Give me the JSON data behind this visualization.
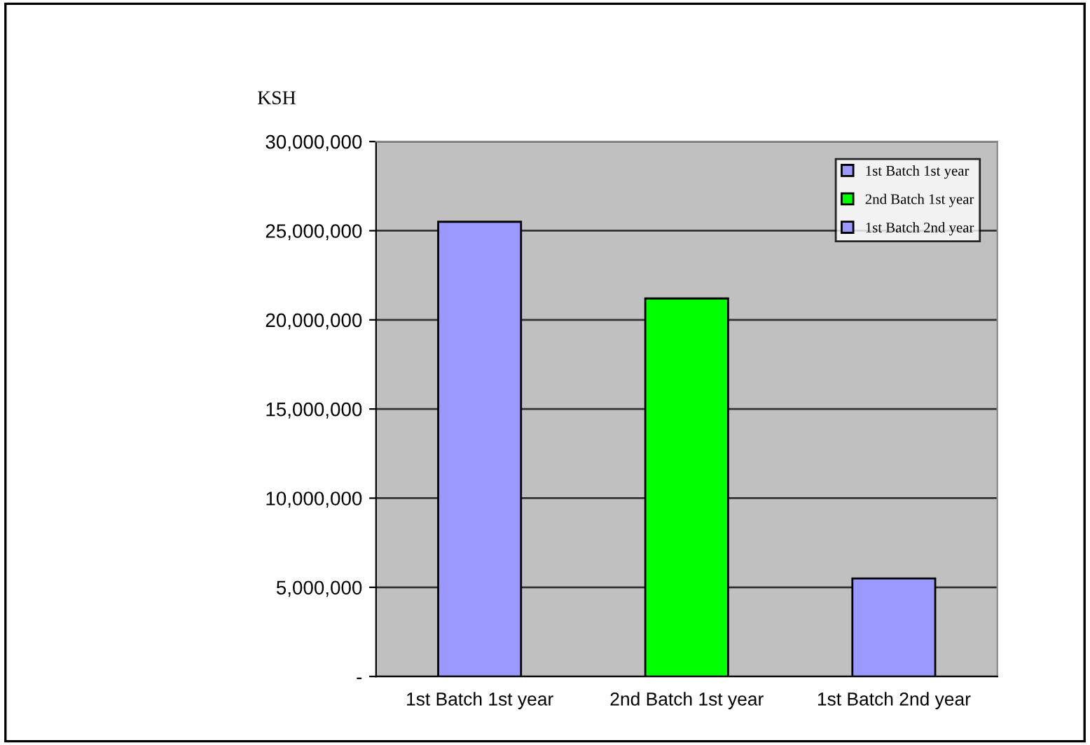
{
  "chart_data": {
    "type": "bar",
    "ylabel": "KSH",
    "categories": [
      "1st Batch 1st year",
      "2nd Batch 1st year",
      "1st Batch 2nd year"
    ],
    "series": [
      {
        "name": "1st Batch 1st year",
        "color": "#9999ff",
        "values": [
          25500000,
          null,
          null
        ]
      },
      {
        "name": "2nd Batch 1st year",
        "color": "#00ff00",
        "values": [
          null,
          21200000,
          null
        ]
      },
      {
        "name": "1st Batch 2nd year",
        "color": "#9999ff",
        "values": [
          null,
          null,
          5500000
        ]
      }
    ],
    "ylim": [
      0,
      30000000
    ],
    "yticks": [
      {
        "value": 0,
        "label": "-"
      },
      {
        "value": 5000000,
        "label": "5,000,000"
      },
      {
        "value": 10000000,
        "label": "10,000,000"
      },
      {
        "value": 15000000,
        "label": "15,000,000"
      },
      {
        "value": 20000000,
        "label": "20,000,000"
      },
      {
        "value": 25000000,
        "label": "25,000,000"
      },
      {
        "value": 30000000,
        "label": "30,000,000"
      }
    ],
    "grid": "y",
    "legend": "top right"
  }
}
